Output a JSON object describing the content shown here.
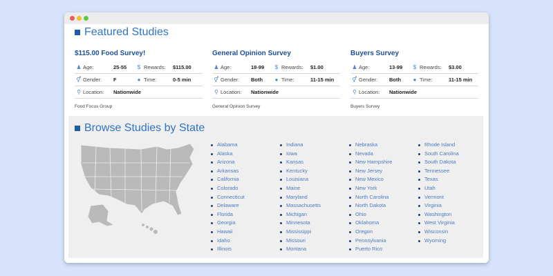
{
  "featured": {
    "title": "Featured Studies",
    "studies": [
      {
        "title": "$115.00 Food Survey!",
        "age_label": "Age:",
        "age": "25-55",
        "rewards_label": "Rewards:",
        "rewards": "$115.00",
        "gender_label": "Gender:",
        "gender": "F",
        "time_label": "Time:",
        "time": "0-5 min",
        "location_label": "Location:",
        "location": "Nationwide",
        "source": "Food Focus Group"
      },
      {
        "title": "General Opinion Survey",
        "age_label": "Age:",
        "age": "18-99",
        "rewards_label": "Rewards:",
        "rewards": "$1.00",
        "gender_label": "Gender:",
        "gender": "Both",
        "time_label": "Time:",
        "time": "11-15 min",
        "location_label": "Location:",
        "location": "Nationwide",
        "source": "General Opinion Survey"
      },
      {
        "title": "Buyers Survey",
        "age_label": "Age:",
        "age": "13-99",
        "rewards_label": "Rewards:",
        "rewards": "$3.00",
        "gender_label": "Gender:",
        "gender": "Both",
        "time_label": "Time:",
        "time": "11-15 min",
        "location_label": "Location:",
        "location": "Nationwide",
        "source": "Buyers Survey"
      }
    ]
  },
  "browse": {
    "title": "Browse Studies by State",
    "columns": [
      [
        "Alabama",
        "Alaska",
        "Arizona",
        "Arkansas",
        "California",
        "Colorado",
        "Connecticut",
        "Delaware",
        "Florida",
        "Georgia",
        "Hawaii",
        "Idaho",
        "Illinois"
      ],
      [
        "Indiana",
        "Iowa",
        "Kansas",
        "Kentucky",
        "Louisiana",
        "Maine",
        "Maryland",
        "Massachusetts",
        "Michigan",
        "Minnesota",
        "Mississippi",
        "Missouri",
        "Montana"
      ],
      [
        "Nebraska",
        "Nevada",
        "New Hampshire",
        "New Jersey",
        "New Mexico",
        "New York",
        "North Carolina",
        "North Dakota",
        "Ohio",
        "Oklahoma",
        "Oregon",
        "Pennsylvania",
        "Puerto Rico"
      ],
      [
        "Rhode Island",
        "South Carolina",
        "South Dakota",
        "Tennessee",
        "Texas",
        "Utah",
        "Vermont",
        "Virginia",
        "Washington",
        "West Virginia",
        "Wisconsin",
        "Wyoming"
      ]
    ]
  },
  "icons": {
    "age": "people-icon",
    "rewards": "dollar-icon",
    "gender": "gender-icon",
    "time": "clock-icon",
    "location": "pin-icon"
  },
  "colors": {
    "accent": "#2e74c8",
    "link": "#4a7bc2",
    "background": "#d6e3fb"
  }
}
